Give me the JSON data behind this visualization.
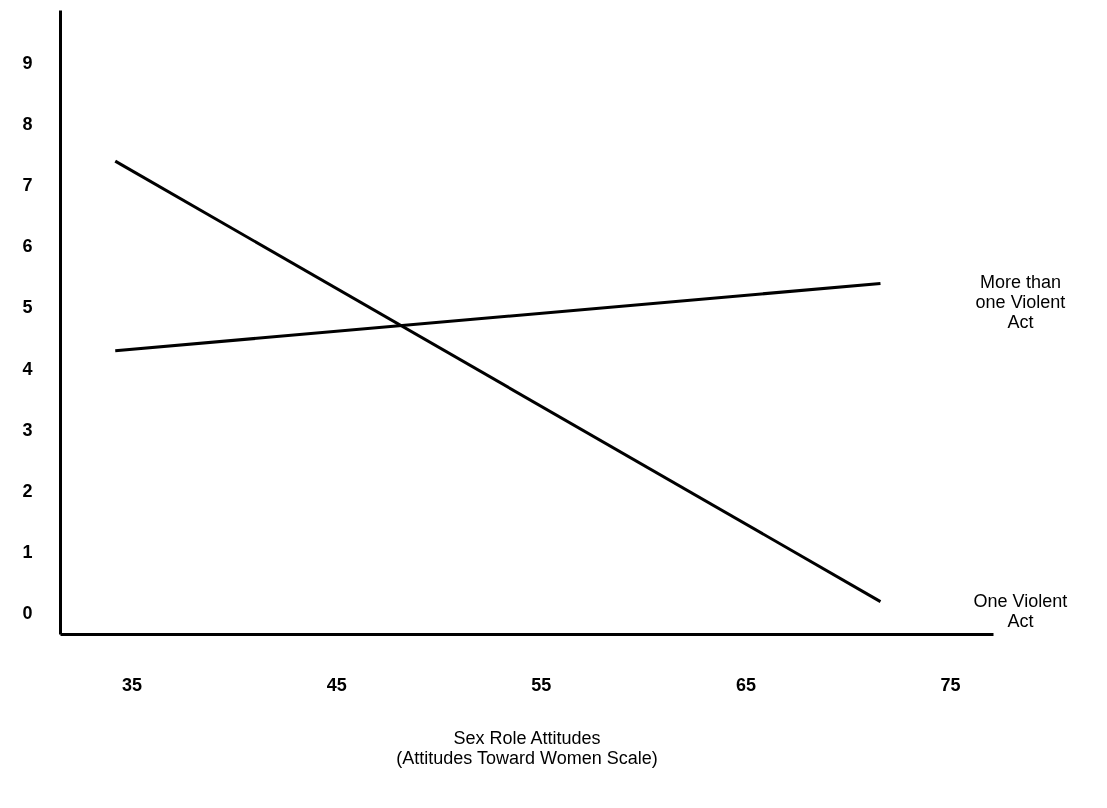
{
  "chart_data": {
    "type": "line",
    "xlabel": "Sex Role Attitudes\n(Attitudes Toward Women Scale)",
    "x": [
      34.2,
      71.6
    ],
    "series": [
      {
        "name": "One Violent Act",
        "color": "#000000",
        "values": [
          7.4,
          0.2
        ]
      },
      {
        "name": "More than one Violent Act",
        "color": "#000000",
        "values": [
          4.3,
          5.4
        ]
      }
    ],
    "xlim": [
      31.5,
      77.1
    ],
    "xticks": [
      35,
      45,
      55,
      65,
      75
    ],
    "ylim": [
      -0.33,
      9.87
    ],
    "yticks": [
      0,
      1,
      2,
      3,
      4,
      5,
      6,
      7,
      8,
      9
    ],
    "grid": false,
    "legend": false,
    "marker": "none",
    "line_style": "solid"
  }
}
